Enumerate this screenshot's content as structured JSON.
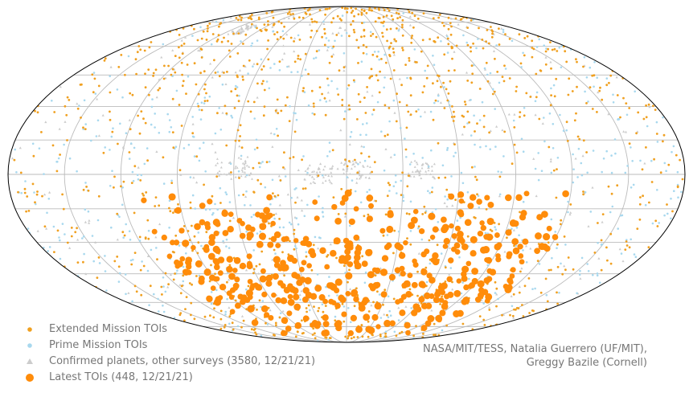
{
  "chart_data": {
    "type": "scatter",
    "projection": "mollweide",
    "grid": true,
    "legend_position": "bottom-left",
    "series": [
      {
        "name": "Extended Mission TOIs",
        "color": "#f0a020",
        "marker": "small-circle"
      },
      {
        "name": "Prime Mission TOIs",
        "color": "#a8d8ee",
        "marker": "small-circle"
      },
      {
        "name": "Confirmed planets, other surveys (3580, 12/21/21)",
        "color": "#cccccc",
        "marker": "triangle"
      },
      {
        "name": "Latest TOIs (448, 12/21/21)",
        "color": "#ff8c0a",
        "marker": "large-circle"
      }
    ],
    "credit": [
      "NASA/MIT/TESS, Natalia Guerrero (UF/MIT),",
      "Greggy Bazile (Cornell)"
    ]
  }
}
